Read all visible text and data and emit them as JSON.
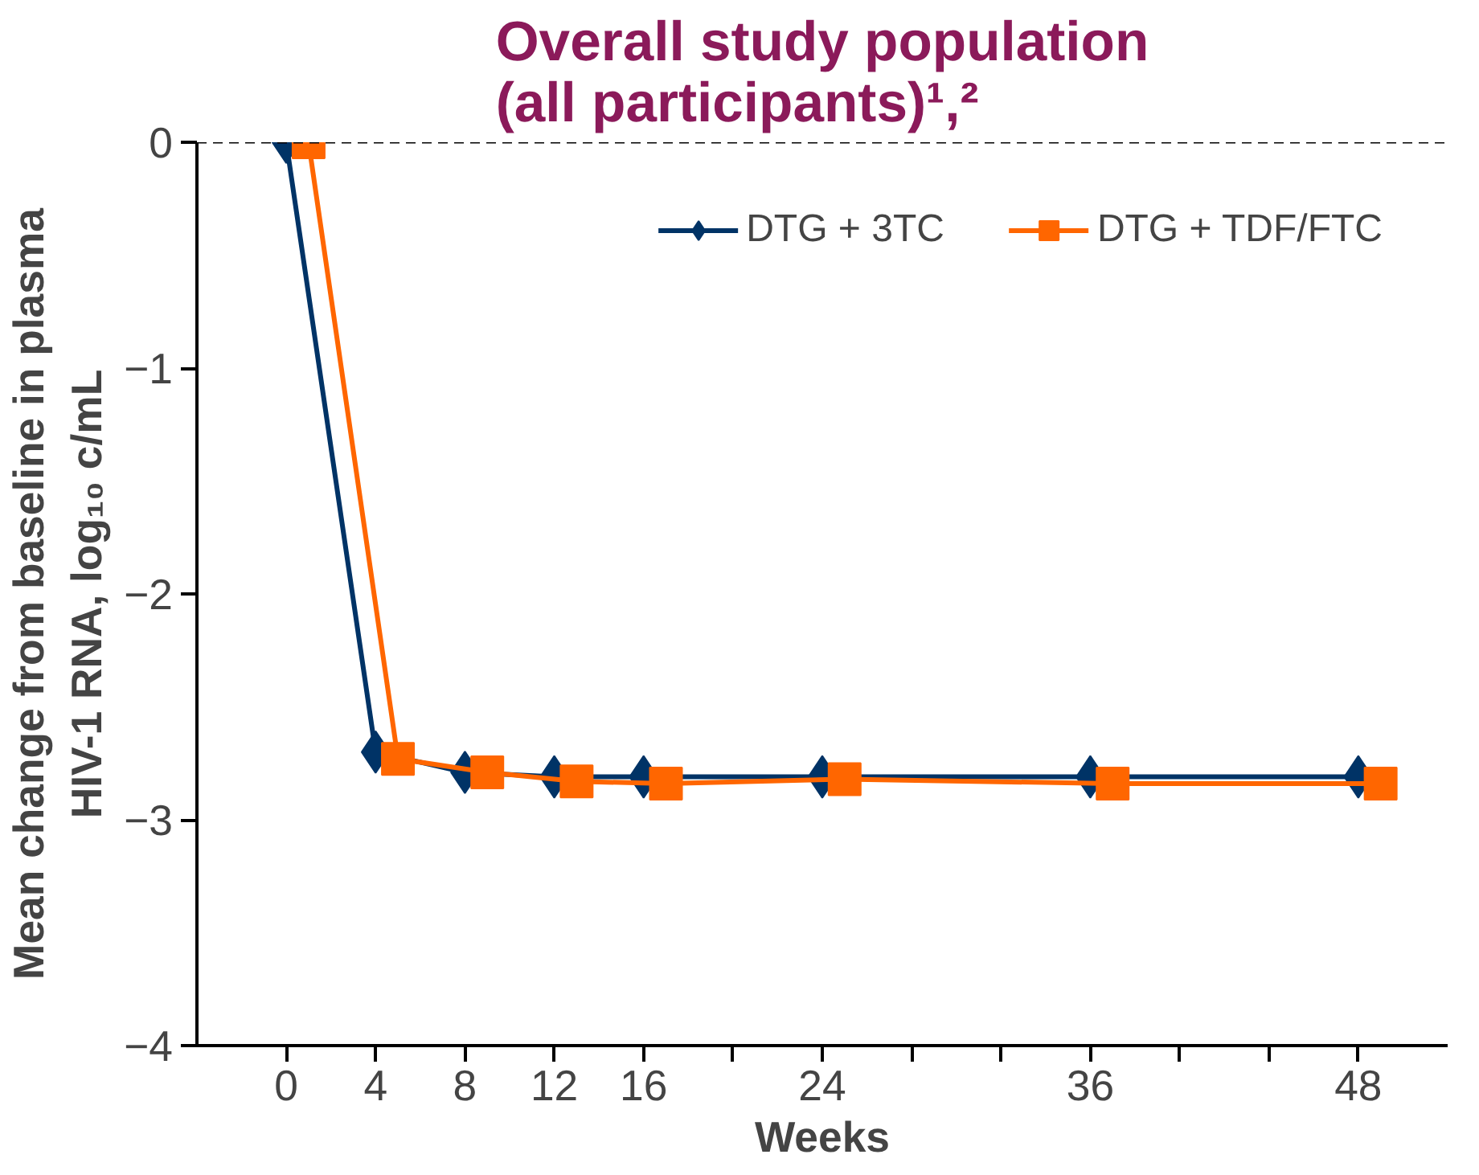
{
  "chart_data": {
    "type": "line",
    "title": "Overall study population\n(all participants)¹,²",
    "xlabel": "Weeks",
    "ylabel": "Mean change from baseline in plasma\nHIV-1 RNA, log₁₀ c/mL",
    "x": [
      0,
      4,
      8,
      12,
      16,
      24,
      36,
      48
    ],
    "series": [
      {
        "name": "DTG + 3TC",
        "color": "#003366",
        "marker": "diamond",
        "values": [
          0,
          -2.7,
          -2.79,
          -2.81,
          -2.81,
          -2.81,
          -2.81,
          -2.81
        ]
      },
      {
        "name": "DTG + TDF/FTC",
        "color": "#ff6600",
        "marker": "square",
        "x": [
          1,
          5,
          9,
          13,
          17,
          25,
          37,
          49
        ],
        "values": [
          0,
          -2.73,
          -2.79,
          -2.83,
          -2.84,
          -2.82,
          -2.84,
          -2.84
        ]
      }
    ],
    "xlim": [
      -4,
      52
    ],
    "xticks": [
      0,
      4,
      8,
      12,
      16,
      {
        "value": 20,
        "label": null
      },
      24,
      {
        "value": 28,
        "label": null
      },
      {
        "value": 32,
        "label": null
      },
      36,
      {
        "value": 40,
        "label": null
      },
      {
        "value": 44,
        "label": null
      },
      48
    ],
    "ylim": [
      -4,
      0
    ],
    "yticks": [
      {
        "value": -4,
        "label": "−4"
      },
      {
        "value": -3,
        "label": "−3"
      },
      {
        "value": -2,
        "label": "−2"
      },
      {
        "value": -1,
        "label": "−1"
      },
      0
    ],
    "ref_lines": [
      {
        "axis": "y",
        "value": 0,
        "label": null,
        "line_style": "dashed",
        "color": "#000000"
      }
    ],
    "grid": false,
    "legend": "top right",
    "line_style": "solid"
  }
}
